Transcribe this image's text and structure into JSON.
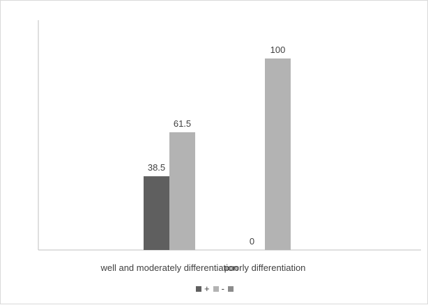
{
  "chart_data": {
    "type": "bar",
    "categories": [
      "well and moderately differentiation",
      "poorly differentiation"
    ],
    "series": [
      {
        "name": "+",
        "values": [
          38.5,
          0
        ],
        "color": "#5f5f5f"
      },
      {
        "name": "-",
        "values": [
          61.5,
          100
        ],
        "color": "#b3b3b3"
      },
      {
        "name": "",
        "values": [
          null,
          null
        ],
        "color": "#8c8c8c"
      }
    ],
    "data_labels": [
      [
        "38.5",
        "0"
      ],
      [
        "61.5",
        "100"
      ]
    ],
    "title": "",
    "xlabel": "",
    "ylabel": "",
    "ylim": [
      0,
      100
    ],
    "grid": false,
    "legend_position": "bottom"
  }
}
